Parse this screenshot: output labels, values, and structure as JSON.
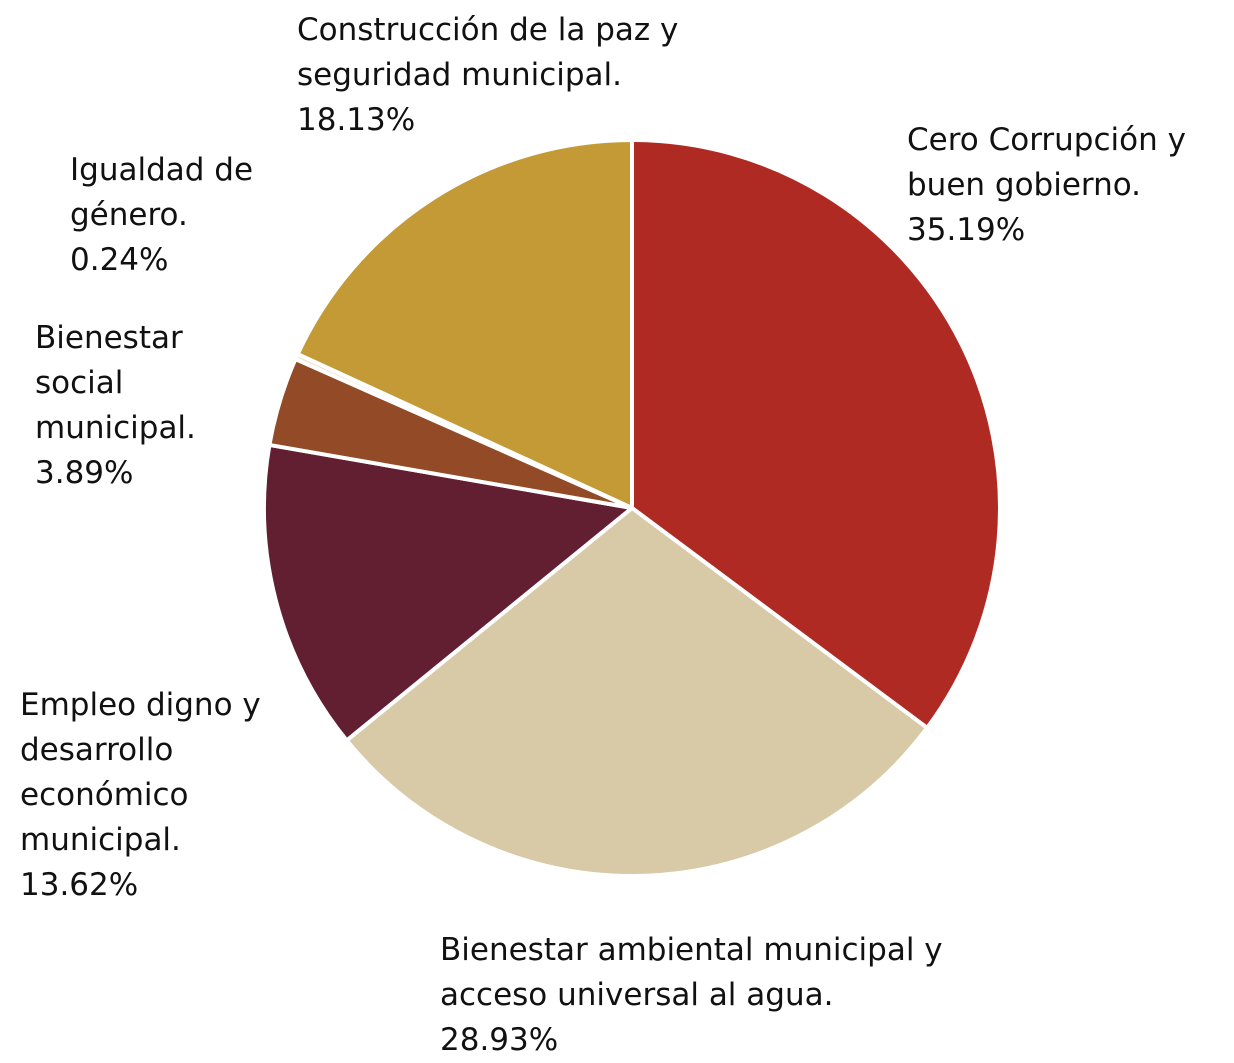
{
  "chart_data": {
    "type": "pie",
    "categories": [
      "Cero Corrupción y buen gobierno.",
      "Bienestar ambiental municipal y acceso universal al agua.",
      "Empleo digno y desarrollo económico municipal.",
      "Bienestar social municipal.",
      "Igualdad de género.",
      "Construcción de la paz y seguridad municipal."
    ],
    "values": [
      35.19,
      28.93,
      13.62,
      3.89,
      0.24,
      18.13
    ],
    "value_labels": [
      "35.19%",
      "28.93%",
      "13.62%",
      "3.89%",
      "0.24%",
      "18.13%"
    ],
    "colors": [
      "#b02a24",
      "#d8caa6",
      "#621f32",
      "#924b26",
      "#f0e6cf",
      "#c49a36"
    ]
  }
}
